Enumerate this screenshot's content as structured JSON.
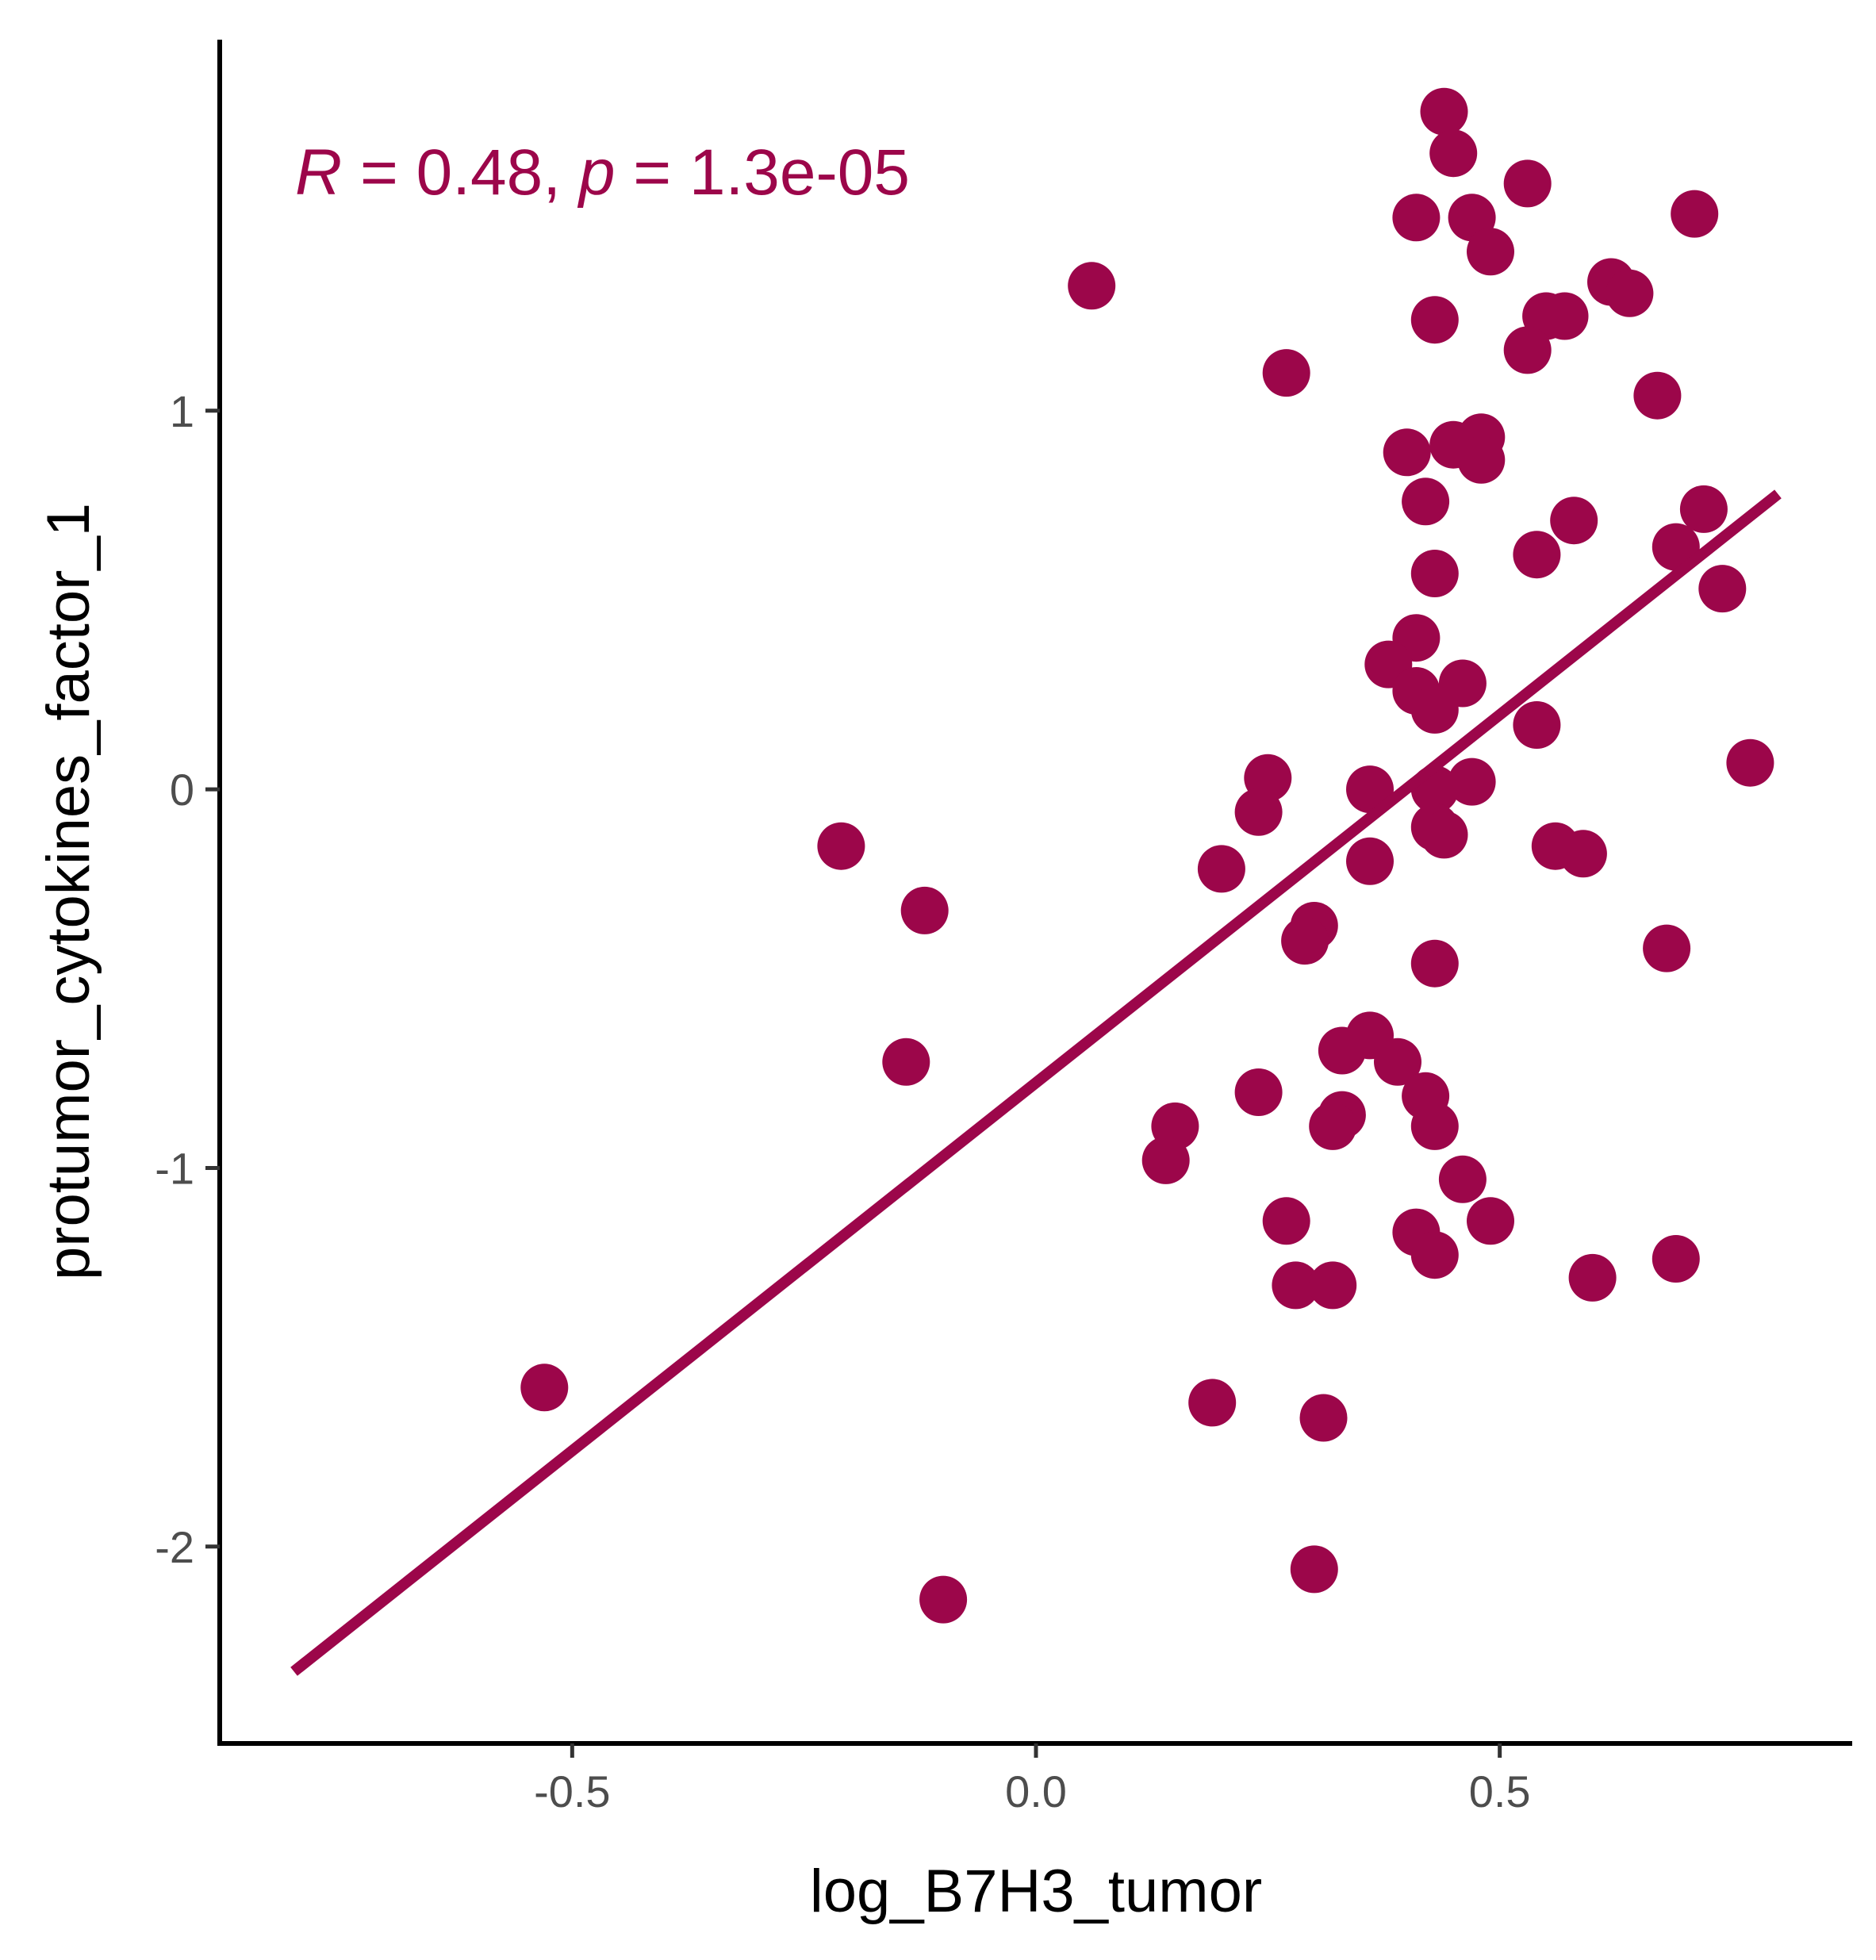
{
  "chart_data": {
    "type": "scatter",
    "xlabel": "log_B7H3_tumor",
    "ylabel": "protumor_cytokines_factor_1",
    "xlim": [
      -0.88,
      0.88
    ],
    "ylim": [
      -2.52,
      1.98
    ],
    "x_ticks": [
      -0.5,
      0.0,
      0.5
    ],
    "x_tick_labels": [
      "-0.5",
      "0.0",
      "0.5"
    ],
    "y_ticks": [
      -2,
      -1,
      0,
      1
    ],
    "y_tick_labels": [
      "-2",
      "-1",
      "0",
      "1"
    ],
    "grid": false,
    "annotation": {
      "r_symbol": "R",
      "r_eq": " = 0.48, ",
      "p_symbol": "p",
      "p_eq": " = 1.3e-05"
    },
    "point_color": "#9c064a",
    "regression_line": {
      "x": [
        -0.8,
        0.8
      ],
      "y": [
        -2.33,
        0.78
      ]
    },
    "points": [
      [
        0.44,
        1.79
      ],
      [
        0.45,
        1.68
      ],
      [
        0.53,
        1.6
      ],
      [
        0.41,
        1.51
      ],
      [
        0.47,
        1.51
      ],
      [
        0.71,
        1.52
      ],
      [
        0.49,
        1.42
      ],
      [
        0.06,
        1.33
      ],
      [
        0.62,
        1.34
      ],
      [
        0.64,
        1.31
      ],
      [
        0.43,
        1.24
      ],
      [
        0.55,
        1.25
      ],
      [
        0.57,
        1.25
      ],
      [
        0.53,
        1.16
      ],
      [
        0.27,
        1.1
      ],
      [
        0.67,
        1.04
      ],
      [
        0.4,
        0.89
      ],
      [
        0.45,
        0.91
      ],
      [
        0.48,
        0.93
      ],
      [
        0.48,
        0.87
      ],
      [
        0.42,
        0.76
      ],
      [
        0.72,
        0.74
      ],
      [
        0.58,
        0.71
      ],
      [
        0.69,
        0.64
      ],
      [
        0.54,
        0.62
      ],
      [
        0.43,
        0.57
      ],
      [
        0.74,
        0.53
      ],
      [
        0.41,
        0.4
      ],
      [
        0.38,
        0.33
      ],
      [
        0.41,
        0.26
      ],
      [
        0.43,
        0.21
      ],
      [
        0.46,
        0.28
      ],
      [
        0.54,
        0.17
      ],
      [
        0.77,
        0.07
      ],
      [
        0.25,
        0.03
      ],
      [
        0.36,
        0.0
      ],
      [
        0.43,
        0.0
      ],
      [
        0.47,
        0.02
      ],
      [
        0.24,
        -0.06
      ],
      [
        0.43,
        -0.1
      ],
      [
        0.44,
        -0.12
      ],
      [
        -0.21,
        -0.15
      ],
      [
        0.56,
        -0.15
      ],
      [
        0.59,
        -0.17
      ],
      [
        0.36,
        -0.19
      ],
      [
        0.2,
        -0.21
      ],
      [
        -0.12,
        -0.32
      ],
      [
        0.3,
        -0.36
      ],
      [
        0.29,
        -0.4
      ],
      [
        0.68,
        -0.42
      ],
      [
        0.43,
        -0.46
      ],
      [
        0.36,
        -0.65
      ],
      [
        0.39,
        -0.72
      ],
      [
        0.33,
        -0.69
      ],
      [
        -0.14,
        -0.72
      ],
      [
        0.24,
        -0.8
      ],
      [
        0.42,
        -0.81
      ],
      [
        0.33,
        -0.86
      ],
      [
        0.32,
        -0.89
      ],
      [
        0.43,
        -0.89
      ],
      [
        0.15,
        -0.89
      ],
      [
        0.14,
        -0.98
      ],
      [
        0.46,
        -1.03
      ],
      [
        0.27,
        -1.14
      ],
      [
        0.49,
        -1.14
      ],
      [
        0.41,
        -1.17
      ],
      [
        0.43,
        -1.23
      ],
      [
        0.69,
        -1.24
      ],
      [
        0.28,
        -1.31
      ],
      [
        0.32,
        -1.31
      ],
      [
        0.6,
        -1.29
      ],
      [
        -0.53,
        -1.58
      ],
      [
        0.19,
        -1.62
      ],
      [
        0.31,
        -1.66
      ],
      [
        0.3,
        -2.06
      ],
      [
        -0.1,
        -2.14
      ]
    ]
  }
}
